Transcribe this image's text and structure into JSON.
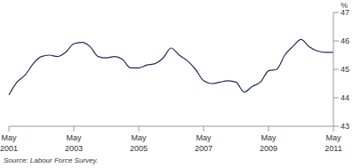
{
  "chart_data": {
    "type": "line",
    "y_label": "%",
    "source": "Source: Labour Force Survey.",
    "categories": [
      "May 2001",
      null,
      null,
      null,
      null,
      null,
      null,
      null,
      "May 2003",
      null,
      null,
      null,
      null,
      null,
      null,
      null,
      "May 2005",
      null,
      null,
      null,
      null,
      null,
      null,
      null,
      "May 2007",
      null,
      null,
      null,
      null,
      null,
      null,
      null,
      "May 2009",
      null,
      null,
      null,
      null,
      null,
      null,
      null,
      "May 2011"
    ],
    "values": [
      44.1,
      44.55,
      44.8,
      45.2,
      45.45,
      45.5,
      45.45,
      45.6,
      45.9,
      45.95,
      45.8,
      45.45,
      45.4,
      45.45,
      45.35,
      45.05,
      45.05,
      45.15,
      45.2,
      45.4,
      45.75,
      45.5,
      45.3,
      45.0,
      44.6,
      44.5,
      44.55,
      44.6,
      44.55,
      44.2,
      44.4,
      44.55,
      44.95,
      45.0,
      45.5,
      45.8,
      46.05,
      45.8,
      45.65,
      45.6,
      45.6
    ],
    "color": "#1f2d5a",
    "ylim": [
      43,
      47
    ],
    "yticks": [
      43,
      44,
      45,
      46,
      47
    ],
    "grid": false
  }
}
